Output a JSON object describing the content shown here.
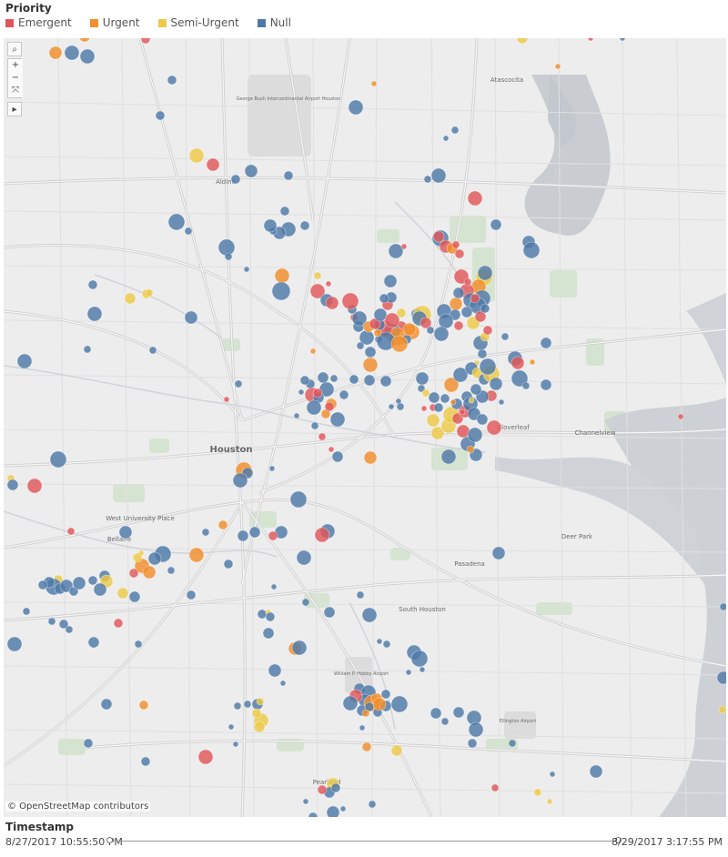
{
  "legend": {
    "title": "Priority",
    "items": [
      {
        "label": "Emergent",
        "color": "#e15759"
      },
      {
        "label": "Urgent",
        "color": "#f28e2b"
      },
      {
        "label": "Semi-Urgent",
        "color": "#edc948"
      },
      {
        "label": "Null",
        "color": "#4e79a7"
      }
    ]
  },
  "map": {
    "labels": [
      {
        "text": "Houston",
        "size": 10,
        "weight": "bold"
      },
      {
        "text": "Aldine",
        "size": 7
      },
      {
        "text": "Pasadena",
        "size": 7
      },
      {
        "text": "South Houston",
        "size": 7
      },
      {
        "text": "Bellaire",
        "size": 7
      },
      {
        "text": "West University Place",
        "size": 7
      },
      {
        "text": "Deer Park",
        "size": 7
      },
      {
        "text": "Channelview",
        "size": 7
      },
      {
        "text": "Cloverleaf",
        "size": 7
      },
      {
        "text": "Atascocita",
        "size": 7
      },
      {
        "text": "Pearland",
        "size": 7
      },
      {
        "text": "George Bush Intercontinental Airport Houston",
        "size": 5
      },
      {
        "text": "William P. Hobby Airport",
        "size": 5
      },
      {
        "text": "Ellington Airport",
        "size": 5
      }
    ],
    "toolbar": {
      "search": "⌕",
      "zoom_in": "+",
      "zoom_out": "−",
      "pan": "⤧",
      "expand": "▸"
    },
    "attribution": "© OpenStreetMap contributors"
  },
  "timestamp": {
    "title": "Timestamp",
    "start": "8/27/2017 10:55:50 PM",
    "end": "8/29/2017 3:17:55 PM"
  }
}
